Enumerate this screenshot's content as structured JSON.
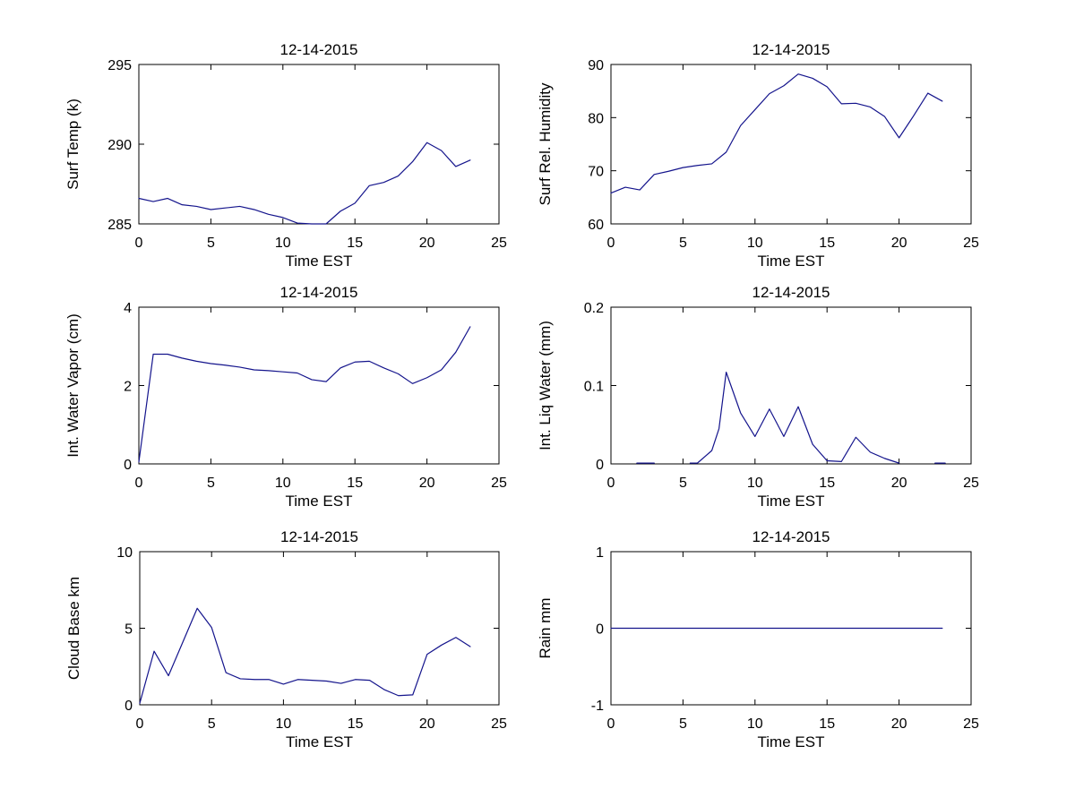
{
  "figure": {
    "background_color": "#FFFFFF",
    "axes_color": "#000000",
    "text_color": "#000000",
    "line_color": "#14148C"
  },
  "chart_data": [
    {
      "type": "line",
      "title": "12-14-2015",
      "xlabel": "Time EST",
      "ylabel": "Surf Temp (k)",
      "xlim": [
        0,
        25
      ],
      "ylim": [
        285,
        295
      ],
      "xticks": [
        0,
        5,
        10,
        15,
        20,
        25
      ],
      "yticks": [
        285,
        290,
        295
      ],
      "xtick_labels": [
        "0",
        "5",
        "10",
        "15",
        "20",
        "25"
      ],
      "ytick_labels": [
        "285",
        "290",
        "295"
      ],
      "grid": false,
      "legend": null,
      "line_color": "#14148C",
      "series": [
        {
          "name": "surface-temperature",
          "x": [
            0,
            1,
            2,
            3,
            4,
            5,
            6,
            7,
            8,
            9,
            10,
            11,
            12,
            13,
            14,
            15,
            16,
            17,
            18,
            19,
            20,
            21,
            22,
            23
          ],
          "y": [
            286.6,
            286.4,
            286.6,
            286.2,
            286.1,
            285.9,
            286.0,
            286.1,
            285.9,
            285.6,
            285.4,
            285.05,
            285.0,
            285.0,
            285.8,
            286.3,
            287.4,
            287.6,
            288.0,
            288.9,
            290.1,
            289.6,
            288.6,
            289.0
          ]
        }
      ]
    },
    {
      "type": "line",
      "title": "12-14-2015",
      "xlabel": "Time EST",
      "ylabel": "Surf Rel. Humidity",
      "xlim": [
        0,
        25
      ],
      "ylim": [
        60,
        90
      ],
      "xticks": [
        0,
        5,
        10,
        15,
        20,
        25
      ],
      "yticks": [
        60,
        70,
        80,
        90
      ],
      "xtick_labels": [
        "0",
        "5",
        "10",
        "15",
        "20",
        "25"
      ],
      "ytick_labels": [
        "60",
        "70",
        "80",
        "90"
      ],
      "grid": false,
      "legend": null,
      "line_color": "#14148C",
      "series": [
        {
          "name": "surface-relative-humidity",
          "x": [
            0,
            1,
            2,
            3,
            4,
            5,
            6,
            7,
            8,
            9,
            10,
            11,
            12,
            13,
            14,
            15,
            16,
            17,
            18,
            19,
            20,
            21,
            22,
            23
          ],
          "y": [
            65.8,
            66.9,
            66.4,
            69.3,
            69.9,
            70.6,
            71.0,
            71.3,
            73.5,
            78.5,
            81.5,
            84.5,
            86.0,
            88.2,
            87.4,
            85.8,
            82.6,
            82.7,
            82.0,
            80.2,
            76.2,
            80.3,
            84.6,
            83.1
          ]
        }
      ]
    },
    {
      "type": "line",
      "title": "12-14-2015",
      "xlabel": "Time EST",
      "ylabel": "Int. Water Vapor (cm)",
      "xlim": [
        0,
        25
      ],
      "ylim": [
        0,
        4
      ],
      "xticks": [
        0,
        5,
        10,
        15,
        20,
        25
      ],
      "yticks": [
        0,
        2,
        4
      ],
      "xtick_labels": [
        "0",
        "5",
        "10",
        "15",
        "20",
        "25"
      ],
      "ytick_labels": [
        "0",
        "2",
        "4"
      ],
      "grid": false,
      "legend": null,
      "line_color": "#14148C",
      "series": [
        {
          "name": "integrated-water-vapor",
          "x": [
            0,
            1,
            2,
            3,
            4,
            5,
            6,
            7,
            8,
            9,
            10,
            11,
            12,
            13,
            14,
            15,
            16,
            17,
            18,
            19,
            20,
            21,
            22,
            23
          ],
          "y": [
            0.05,
            2.8,
            2.8,
            2.7,
            2.62,
            2.56,
            2.52,
            2.47,
            2.4,
            2.38,
            2.35,
            2.32,
            2.15,
            2.1,
            2.45,
            2.6,
            2.62,
            2.45,
            2.3,
            2.05,
            2.2,
            2.4,
            2.85,
            3.5
          ]
        }
      ]
    },
    {
      "type": "line",
      "title": "12-14-2015",
      "xlabel": "Time EST",
      "ylabel": "Int. Liq Water (mm)",
      "xlim": [
        0,
        25
      ],
      "ylim": [
        0,
        0.2
      ],
      "xticks": [
        0,
        5,
        10,
        15,
        20,
        25
      ],
      "yticks": [
        0,
        0.1,
        0.2
      ],
      "xtick_labels": [
        "0",
        "5",
        "10",
        "15",
        "20",
        "25"
      ],
      "ytick_labels": [
        "0",
        "0.1",
        "0.2"
      ],
      "grid": false,
      "legend": null,
      "line_color": "#14148C",
      "series": [
        {
          "name": "integrated-liquid-water-segment-1",
          "x": [
            1.8,
            3.0
          ],
          "y": [
            0.001,
            0.001
          ]
        },
        {
          "name": "integrated-liquid-water-segment-2",
          "x": [
            5.5,
            6,
            7,
            7.5,
            8,
            9,
            10,
            11,
            12,
            13,
            14,
            15,
            16,
            17,
            18,
            19,
            20
          ],
          "y": [
            0.001,
            0.001,
            0.017,
            0.045,
            0.117,
            0.065,
            0.035,
            0.07,
            0.035,
            0.073,
            0.025,
            0.004,
            0.003,
            0.034,
            0.015,
            0.007,
            0.001
          ]
        },
        {
          "name": "integrated-liquid-water-segment-3",
          "x": [
            22.5,
            23.2
          ],
          "y": [
            0.001,
            0.001
          ]
        }
      ]
    },
    {
      "type": "line",
      "title": "12-14-2015",
      "xlabel": "Time EST",
      "ylabel": "Cloud Base km",
      "xlim": [
        0,
        25
      ],
      "ylim": [
        0,
        10
      ],
      "xticks": [
        0,
        5,
        10,
        15,
        20,
        25
      ],
      "yticks": [
        0,
        5,
        10
      ],
      "xtick_labels": [
        "0",
        "5",
        "10",
        "15",
        "20",
        "25"
      ],
      "ytick_labels": [
        "0",
        "5",
        "10"
      ],
      "grid": false,
      "legend": null,
      "line_color": "#14148C",
      "series": [
        {
          "name": "cloud-base-height",
          "x": [
            0,
            1,
            2,
            3,
            4,
            5,
            6,
            7,
            8,
            9,
            10,
            11,
            12,
            13,
            14,
            15,
            16,
            17,
            18,
            19,
            20,
            21,
            22,
            23
          ],
          "y": [
            0.1,
            3.5,
            1.9,
            4.1,
            6.3,
            5.05,
            2.1,
            1.7,
            1.65,
            1.65,
            1.35,
            1.65,
            1.6,
            1.55,
            1.4,
            1.65,
            1.6,
            1.0,
            0.6,
            0.65,
            3.3,
            3.9,
            4.4,
            3.8
          ]
        }
      ]
    },
    {
      "type": "line",
      "title": "12-14-2015",
      "xlabel": "Time EST",
      "ylabel": "Rain mm",
      "xlim": [
        0,
        25
      ],
      "ylim": [
        -1,
        1
      ],
      "xticks": [
        0,
        5,
        10,
        15,
        20,
        25
      ],
      "yticks": [
        -1,
        0,
        1
      ],
      "xtick_labels": [
        "0",
        "5",
        "10",
        "15",
        "20",
        "25"
      ],
      "ytick_labels": [
        "-1",
        "0",
        "1"
      ],
      "grid": false,
      "legend": null,
      "line_color": "#14148C",
      "series": [
        {
          "name": "rain-amount",
          "x": [
            0,
            23
          ],
          "y": [
            0,
            0
          ]
        }
      ]
    }
  ]
}
